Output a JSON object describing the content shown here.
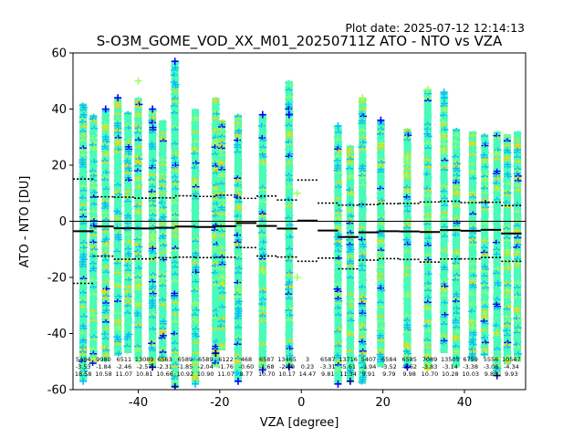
{
  "figure": {
    "plot_date": "Plot date: 2025-07-12 12:14:13",
    "title": "S-O3M_GOME_VOD_XX_M01_20250711Z ATO - NTO vs VZA"
  },
  "chart_data": {
    "type": "scatter",
    "xlabel": "VZA [degree]",
    "ylabel": "ATO - NTO [DU]",
    "xlim": [
      -56,
      55
    ],
    "ylim": [
      -60,
      60
    ],
    "xticks": [
      -40,
      -20,
      0,
      20,
      40
    ],
    "yticks": [
      -60,
      -40,
      -20,
      0,
      20,
      40,
      60
    ],
    "grid": false,
    "marker": "plus",
    "colormap": [
      "#00008b",
      "#0000ff",
      "#00bfff",
      "#40ffc0",
      "#9fff60",
      "#ffd700"
    ],
    "zero_line": 0,
    "bins": [
      {
        "vza": -53.5,
        "count": "5484",
        "mean": "-3.53",
        "std": "18.58"
      },
      {
        "vza": -48.5,
        "count": "9980",
        "mean": "-1.84",
        "std": "10.58"
      },
      {
        "vza": -43.5,
        "count": "6511",
        "mean": "-2.46",
        "std": "11.07"
      },
      {
        "vza": -38.5,
        "count": "13089",
        "mean": "-2.57",
        "std": "10.81"
      },
      {
        "vza": -33.5,
        "count": "6563",
        "mean": "-2.31",
        "std": "10.66"
      },
      {
        "vza": -28.5,
        "count": "6589",
        "mean": "-1.85",
        "std": "10.92"
      },
      {
        "vza": -23.5,
        "count": "6589",
        "mean": "-2.04",
        "std": "10.90"
      },
      {
        "vza": -18.5,
        "count": "6122",
        "mean": "-1.76",
        "std": "11.07"
      },
      {
        "vza": -13.5,
        "count": "468",
        "mean": "-0.60",
        "std": "8.77"
      },
      {
        "vza": -8.5,
        "count": "6587",
        "mean": "-1.68",
        "std": "10.70"
      },
      {
        "vza": -3.5,
        "count": "13465",
        "mean": "-2.59",
        "std": "10.17"
      },
      {
        "vza": 1.5,
        "count": "3",
        "mean": "0.23",
        "std": "14.47"
      },
      {
        "vza": 6.5,
        "count": "6587",
        "mean": "-3.31",
        "std": "9.81"
      },
      {
        "vza": 11.5,
        "count": "13716",
        "mean": "-5.61",
        "std": "11.34"
      },
      {
        "vza": 16.5,
        "count": "5407",
        "mean": "-3.94",
        "std": "9.91"
      },
      {
        "vza": 21.5,
        "count": "6584",
        "mean": "-3.52",
        "std": "9.79"
      },
      {
        "vza": 26.5,
        "count": "6585",
        "mean": "-3.62",
        "std": "9.98"
      },
      {
        "vza": 31.5,
        "count": "7089",
        "mean": "-3.83",
        "std": "10.70"
      },
      {
        "vza": 36.5,
        "count": "13505",
        "mean": "-3.14",
        "std": "10.28"
      },
      {
        "vza": 41.5,
        "count": "6759",
        "mean": "-3.38",
        "std": "10.03"
      },
      {
        "vza": 46.5,
        "count": "5556",
        "mean": "-3.06",
        "std": "9.85"
      },
      {
        "vza": 51.5,
        "count": "10547",
        "mean": "-4.34",
        "std": "9.93"
      }
    ],
    "scan_columns": [
      {
        "vza": -53.5,
        "lo": -57,
        "hi": 42
      },
      {
        "vza": -51,
        "lo": -51,
        "hi": 38
      },
      {
        "vza": -48,
        "lo": -50,
        "hi": 40
      },
      {
        "vza": -45,
        "lo": -48,
        "hi": 44
      },
      {
        "vza": -42.5,
        "lo": -47,
        "hi": 39
      },
      {
        "vza": -40,
        "lo": -50,
        "hi": 44
      },
      {
        "vza": -36.5,
        "lo": -52,
        "hi": 40
      },
      {
        "vza": -34,
        "lo": -50,
        "hi": 36
      },
      {
        "vza": -31,
        "lo": -59,
        "hi": 57
      },
      {
        "vza": -26,
        "lo": -58,
        "hi": 40
      },
      {
        "vza": -21,
        "lo": -52,
        "hi": 44
      },
      {
        "vza": -19.5,
        "lo": -46,
        "hi": 36
      },
      {
        "vza": -15.5,
        "lo": -57,
        "hi": 38
      },
      {
        "vza": -9.5,
        "lo": -53,
        "hi": 38
      },
      {
        "vza": -3,
        "lo": -52,
        "hi": 50
      },
      {
        "vza": 9,
        "lo": -58,
        "hi": 34
      },
      {
        "vza": 12,
        "lo": -57,
        "hi": 27
      },
      {
        "vza": 15,
        "lo": -58,
        "hi": 44
      },
      {
        "vza": 19.5,
        "lo": -52,
        "hi": 36
      },
      {
        "vza": 26,
        "lo": -52,
        "hi": 33
      },
      {
        "vza": 31,
        "lo": -53,
        "hi": 47
      },
      {
        "vza": 35,
        "lo": -47,
        "hi": 46
      },
      {
        "vza": 38,
        "lo": -52,
        "hi": 33
      },
      {
        "vza": 42,
        "lo": -50,
        "hi": 32
      },
      {
        "vza": 45,
        "lo": -48,
        "hi": 31
      },
      {
        "vza": 48,
        "lo": -55,
        "hi": 32
      },
      {
        "vza": 50.5,
        "lo": -51,
        "hi": 31
      },
      {
        "vza": 53,
        "lo": -50,
        "hi": 32
      }
    ]
  }
}
